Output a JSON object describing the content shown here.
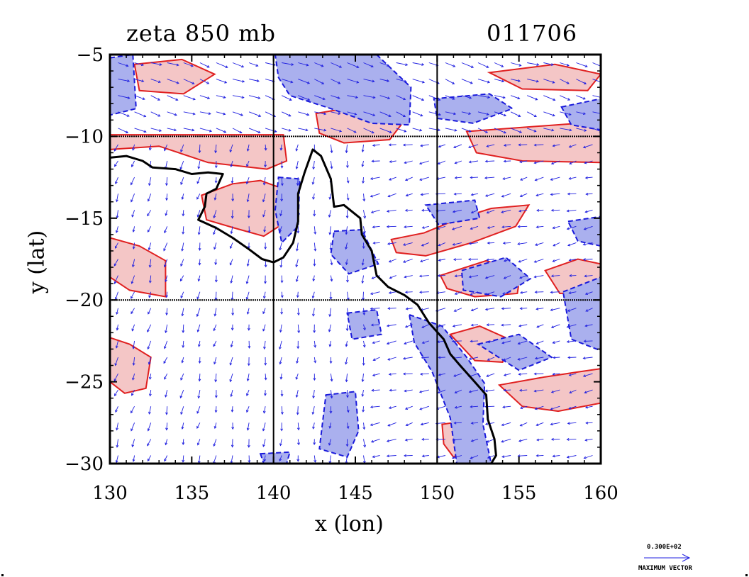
{
  "title_left": "zeta 850 mb",
  "title_right": "011706",
  "colors": {
    "positive_fill": "#f4c6c6",
    "positive_line": "#e02020",
    "negative_fill": "#aab0ee",
    "negative_line": "#1a1adb",
    "vector": "#2020e0",
    "coastline": "#000000",
    "grid": "#000000"
  },
  "legend": {
    "max_vector_value": "0.300E+02",
    "max_vector_label": "MAXIMUM VECTOR",
    "arrow_icon": "vector-arrow-icon"
  },
  "chart_data": {
    "type": "contour-vector-map",
    "xlabel": "x (lon)",
    "ylabel": "y (lat)",
    "xlim": [
      130,
      160
    ],
    "ylim": [
      -30,
      -5
    ],
    "x_ticks": [
      130,
      135,
      140,
      145,
      150,
      155,
      160
    ],
    "y_ticks": [
      -5,
      -10,
      -15,
      -20,
      -25,
      -30
    ],
    "x_tick_labels": [
      "130",
      "135",
      "140",
      "145",
      "150",
      "155",
      "160"
    ],
    "y_tick_labels": [
      "−5",
      "−10",
      "−15",
      "−20",
      "−25",
      "−30"
    ],
    "gridlines": {
      "lon": [
        140,
        150
      ],
      "lat": [
        -10,
        -20
      ]
    },
    "coastline": [
      [
        [
          130,
          -11.3
        ],
        [
          131,
          -11.2
        ],
        [
          132,
          -11.5
        ],
        [
          132.6,
          -11.9
        ],
        [
          134,
          -12
        ],
        [
          135,
          -12.3
        ],
        [
          136,
          -12.2
        ],
        [
          136.9,
          -12.3
        ],
        [
          136.5,
          -13.2
        ],
        [
          135.9,
          -13.5
        ],
        [
          135.8,
          -14.3
        ],
        [
          135.4,
          -15.1
        ],
        [
          136.5,
          -15.6
        ],
        [
          137.5,
          -16.2
        ],
        [
          138.5,
          -16.9
        ],
        [
          139.3,
          -17.5
        ],
        [
          140,
          -17.7
        ],
        [
          140.6,
          -17.4
        ],
        [
          141.2,
          -16.5
        ],
        [
          141.5,
          -15.2
        ],
        [
          141.5,
          -13.5
        ],
        [
          141.9,
          -12.2
        ],
        [
          142.4,
          -10.8
        ],
        [
          142.9,
          -11.2
        ],
        [
          143.5,
          -12.6
        ],
        [
          143.7,
          -14.3
        ],
        [
          144.3,
          -14.2
        ],
        [
          145.3,
          -15
        ],
        [
          145.4,
          -16
        ],
        [
          146,
          -17
        ],
        [
          146.3,
          -18.5
        ],
        [
          147,
          -19.2
        ],
        [
          148,
          -19.7
        ],
        [
          148.8,
          -20.3
        ],
        [
          149.5,
          -21.4
        ],
        [
          150.4,
          -22.4
        ],
        [
          150.8,
          -23.3
        ],
        [
          151.4,
          -24
        ],
        [
          152.2,
          -24.9
        ],
        [
          153,
          -25.8
        ],
        [
          153.1,
          -27.3
        ],
        [
          153.5,
          -28.5
        ],
        [
          153.6,
          -29.5
        ],
        [
          153.3,
          -30
        ]
      ]
    ],
    "positive_regions": [
      [
        [
          130,
          -9.9
        ],
        [
          140.6,
          -9.9
        ],
        [
          140.8,
          -11.5
        ],
        [
          139.6,
          -12
        ],
        [
          136,
          -11.6
        ],
        [
          133,
          -10.6
        ],
        [
          130,
          -10.8
        ]
      ],
      [
        [
          135.6,
          -13.6
        ],
        [
          137.5,
          -12.9
        ],
        [
          139.2,
          -12.7
        ],
        [
          140.6,
          -13.2
        ],
        [
          140.8,
          -15.2
        ],
        [
          139.4,
          -16.1
        ],
        [
          137.6,
          -15.6
        ],
        [
          135.9,
          -15.1
        ]
      ],
      [
        [
          130,
          -16.2
        ],
        [
          131.8,
          -16.7
        ],
        [
          133.4,
          -17.6
        ],
        [
          133.4,
          -19.8
        ],
        [
          131.2,
          -19.4
        ],
        [
          130,
          -18.6
        ]
      ],
      [
        [
          130,
          -22.3
        ],
        [
          131.2,
          -22.7
        ],
        [
          132.5,
          -23.5
        ],
        [
          132.2,
          -25.4
        ],
        [
          130.9,
          -25.7
        ],
        [
          130,
          -25
        ]
      ],
      [
        [
          131.5,
          -5.6
        ],
        [
          134.4,
          -5.3
        ],
        [
          136.4,
          -6.2
        ],
        [
          134.5,
          -7.4
        ],
        [
          131.8,
          -7.2
        ]
      ],
      [
        [
          142.6,
          -8.6
        ],
        [
          145.5,
          -8.1
        ],
        [
          148.1,
          -8.9
        ],
        [
          147.1,
          -10.2
        ],
        [
          144.3,
          -10.4
        ],
        [
          142.8,
          -9.8
        ]
      ],
      [
        [
          151.8,
          -9.7
        ],
        [
          160,
          -9.1
        ],
        [
          160,
          -11.6
        ],
        [
          155.2,
          -11.5
        ],
        [
          152.4,
          -11
        ]
      ],
      [
        [
          153.2,
          -6.1
        ],
        [
          157.2,
          -5.6
        ],
        [
          160,
          -6.2
        ],
        [
          159.2,
          -7.2
        ],
        [
          155.2,
          -7.1
        ]
      ],
      [
        [
          147.2,
          -16.3
        ],
        [
          149.2,
          -15.9
        ],
        [
          151.4,
          -15
        ],
        [
          153.3,
          -14.4
        ],
        [
          155.6,
          -14.2
        ],
        [
          154.8,
          -15.5
        ],
        [
          152.1,
          -16.5
        ],
        [
          149.3,
          -17.3
        ],
        [
          147.5,
          -17.1
        ]
      ],
      [
        [
          150.2,
          -18.5
        ],
        [
          153,
          -17.6
        ],
        [
          155.1,
          -18.3
        ],
        [
          154.9,
          -19.6
        ],
        [
          152.3,
          -19.8
        ],
        [
          150.6,
          -19.3
        ]
      ],
      [
        [
          156.6,
          -18.2
        ],
        [
          158.6,
          -17.5
        ],
        [
          160,
          -17.8
        ],
        [
          160,
          -19.5
        ],
        [
          157.5,
          -19.6
        ]
      ],
      [
        [
          150.8,
          -22.1
        ],
        [
          152.6,
          -21.6
        ],
        [
          154.4,
          -22.4
        ],
        [
          154,
          -23.8
        ],
        [
          152.3,
          -23.7
        ]
      ],
      [
        [
          153.8,
          -25.2
        ],
        [
          156.6,
          -24.7
        ],
        [
          158.6,
          -24.4
        ],
        [
          160,
          -24.2
        ],
        [
          160,
          -26.3
        ],
        [
          157.4,
          -26.8
        ],
        [
          155.2,
          -26.5
        ]
      ],
      [
        [
          150.3,
          -27.6
        ],
        [
          151.7,
          -27.4
        ],
        [
          151.9,
          -29.1
        ],
        [
          151,
          -29.6
        ],
        [
          150.4,
          -28.8
        ]
      ]
    ],
    "negative_regions": [
      [
        [
          140.1,
          -5
        ],
        [
          146.3,
          -5
        ],
        [
          148.4,
          -7
        ],
        [
          148.3,
          -9.3
        ],
        [
          146,
          -9.2
        ],
        [
          143.5,
          -8.3
        ],
        [
          141,
          -7.5
        ],
        [
          140.3,
          -6.4
        ]
      ],
      [
        [
          130,
          -5.2
        ],
        [
          131.4,
          -5
        ],
        [
          131.6,
          -8.3
        ],
        [
          130,
          -8.7
        ]
      ],
      [
        [
          149.8,
          -7.7
        ],
        [
          153.2,
          -7.4
        ],
        [
          154.6,
          -8.3
        ],
        [
          152.2,
          -9.2
        ],
        [
          150,
          -8.9
        ]
      ],
      [
        [
          157.6,
          -8.2
        ],
        [
          160,
          -7.7
        ],
        [
          160,
          -9.6
        ],
        [
          158.2,
          -9.3
        ]
      ],
      [
        [
          140.3,
          -12.5
        ],
        [
          141.6,
          -12.6
        ],
        [
          141.5,
          -15.5
        ],
        [
          140.5,
          -16.5
        ],
        [
          140.1,
          -14.5
        ]
      ],
      [
        [
          143.7,
          -15.8
        ],
        [
          145.4,
          -15.7
        ],
        [
          146.4,
          -17.8
        ],
        [
          144.6,
          -18.4
        ],
        [
          143.5,
          -17.2
        ]
      ],
      [
        [
          149.3,
          -14.2
        ],
        [
          152.3,
          -13.9
        ],
        [
          152.6,
          -15
        ],
        [
          150.1,
          -15.4
        ]
      ],
      [
        [
          151.5,
          -18.2
        ],
        [
          154.2,
          -17.4
        ],
        [
          155.7,
          -18.7
        ],
        [
          153.9,
          -19.8
        ],
        [
          151.6,
          -19.4
        ]
      ],
      [
        [
          158,
          -15.2
        ],
        [
          160,
          -14.9
        ],
        [
          160,
          -16.7
        ],
        [
          158.6,
          -16.4
        ]
      ],
      [
        [
          148.3,
          -20.9
        ],
        [
          150.3,
          -21.6
        ],
        [
          151.8,
          -23.5
        ],
        [
          152.9,
          -25.1
        ],
        [
          152.8,
          -27.6
        ],
        [
          153.3,
          -30
        ],
        [
          151.2,
          -30
        ],
        [
          150.8,
          -27.2
        ],
        [
          149.7,
          -24.4
        ],
        [
          148.6,
          -22.6
        ]
      ],
      [
        [
          152.5,
          -22.7
        ],
        [
          155,
          -22.1
        ],
        [
          157,
          -23.5
        ],
        [
          155,
          -24.3
        ]
      ],
      [
        [
          157.7,
          -19.5
        ],
        [
          160,
          -18.6
        ],
        [
          160,
          -23.1
        ],
        [
          158.2,
          -22.4
        ]
      ],
      [
        [
          143.2,
          -25.8
        ],
        [
          145,
          -25.6
        ],
        [
          145.2,
          -28
        ],
        [
          144.5,
          -29.6
        ],
        [
          142.8,
          -29.1
        ]
      ],
      [
        [
          139.2,
          -29.4
        ],
        [
          141,
          -29.3
        ],
        [
          140.8,
          -30
        ],
        [
          139.4,
          -30
        ]
      ],
      [
        [
          144.5,
          -20.8
        ],
        [
          146.3,
          -20.6
        ],
        [
          146.6,
          -22.1
        ],
        [
          144.8,
          -22.4
        ]
      ]
    ],
    "wind_vectors": {
      "grid_spacing_deg": 1,
      "description": "wind vectors on a 1-degree lat/lon grid over the full domain; vector scale relative to the printed maximum"
    }
  }
}
